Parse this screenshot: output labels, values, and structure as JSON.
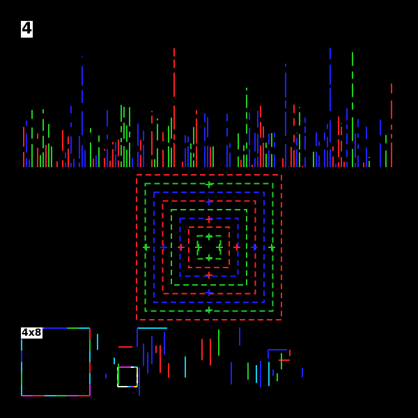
{
  "labels": {
    "number": "4",
    "grid_size": "4x8"
  },
  "colors": {
    "red": "#ff2020",
    "green": "#20d020",
    "blue": "#2020ff",
    "cyan": "#10d0f0",
    "yellow": "#f0f000",
    "magenta": "#f020f0",
    "white": "#ffffff"
  }
}
